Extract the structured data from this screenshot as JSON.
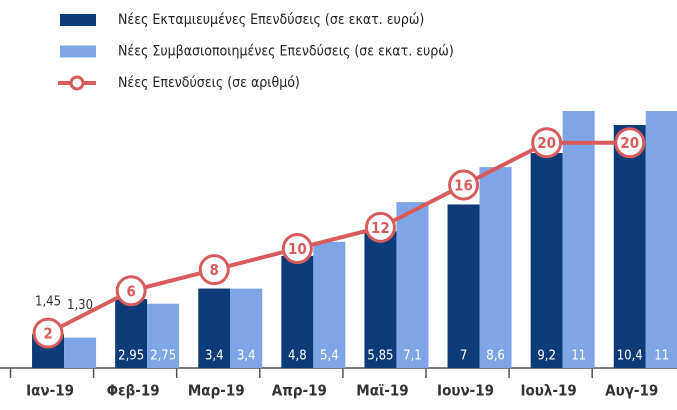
{
  "chart_data": {
    "type": "bar",
    "categories": [
      "Ιαν-19",
      "Φεβ-19",
      "Μαρ-19",
      "Απρ-19",
      "Μαϊ-19",
      "Ιουν-19",
      "Ιουλ-19",
      "Αυγ-19"
    ],
    "series": [
      {
        "name": "Νέες Εκταμιευμένες Επενδύσεις (σε εκατ. ευρώ)",
        "color": "#0c3c78",
        "values": [
          1.45,
          2.95,
          3.4,
          4.8,
          5.85,
          7,
          9.2,
          10.4
        ],
        "value_labels": [
          "1,45",
          "2,95",
          "3,4",
          "4,8",
          "5,85",
          "7",
          "9,2",
          "10,4"
        ]
      },
      {
        "name": "Νέες Συμβασιοποιημένες Επενδύσεις (σε εκατ. ευρώ)",
        "color": "#7ea6e6",
        "values": [
          1.3,
          2.75,
          3.4,
          5.4,
          7.1,
          8.6,
          11,
          11
        ],
        "value_labels": [
          "1,30",
          "2,75",
          "3,4",
          "5,4",
          "7,1",
          "8,6",
          "11",
          "11"
        ]
      },
      {
        "name": "Νέες Επενδύσεις (σε αριθμό)",
        "color": "#d95c5c",
        "type": "line",
        "axis": "y2",
        "values": [
          2,
          6,
          8,
          10,
          12,
          16,
          20,
          20
        ]
      }
    ],
    "ylim": [
      0,
      11
    ],
    "y2lim": [
      -1.3,
      23
    ]
  }
}
